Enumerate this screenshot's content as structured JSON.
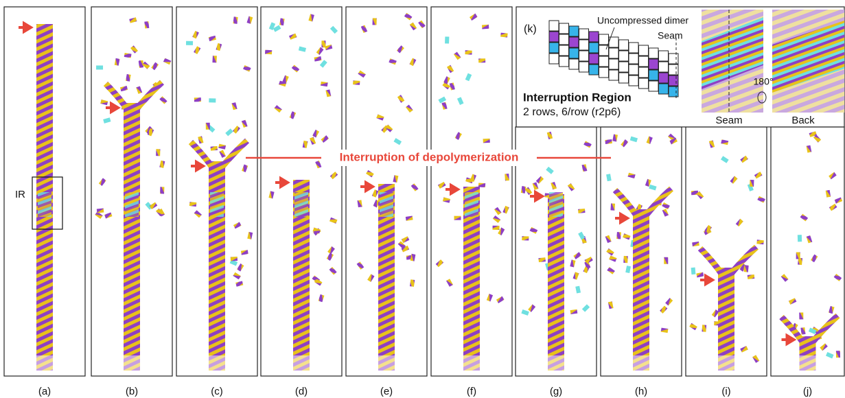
{
  "panels": [
    {
      "label": "(a)"
    },
    {
      "label": "(b)"
    },
    {
      "label": "(c)"
    },
    {
      "label": "(d)"
    },
    {
      "label": "(e)"
    },
    {
      "label": "(f)"
    },
    {
      "label": "(g)"
    },
    {
      "label": "(h)"
    },
    {
      "label": "(i)"
    },
    {
      "label": "(j)"
    }
  ],
  "ir_label": "IR",
  "annotation": "Interruption of depolymerization",
  "inset": {
    "label": "(k)",
    "uncompressed_label": "Uncompressed dimer",
    "seam_label": "Seam",
    "region_title": "Interruption Region",
    "region_desc": "2 rows, 6/row (r2p6)",
    "rotation": "180°",
    "image_labels": [
      "Seam",
      "Back"
    ]
  }
}
